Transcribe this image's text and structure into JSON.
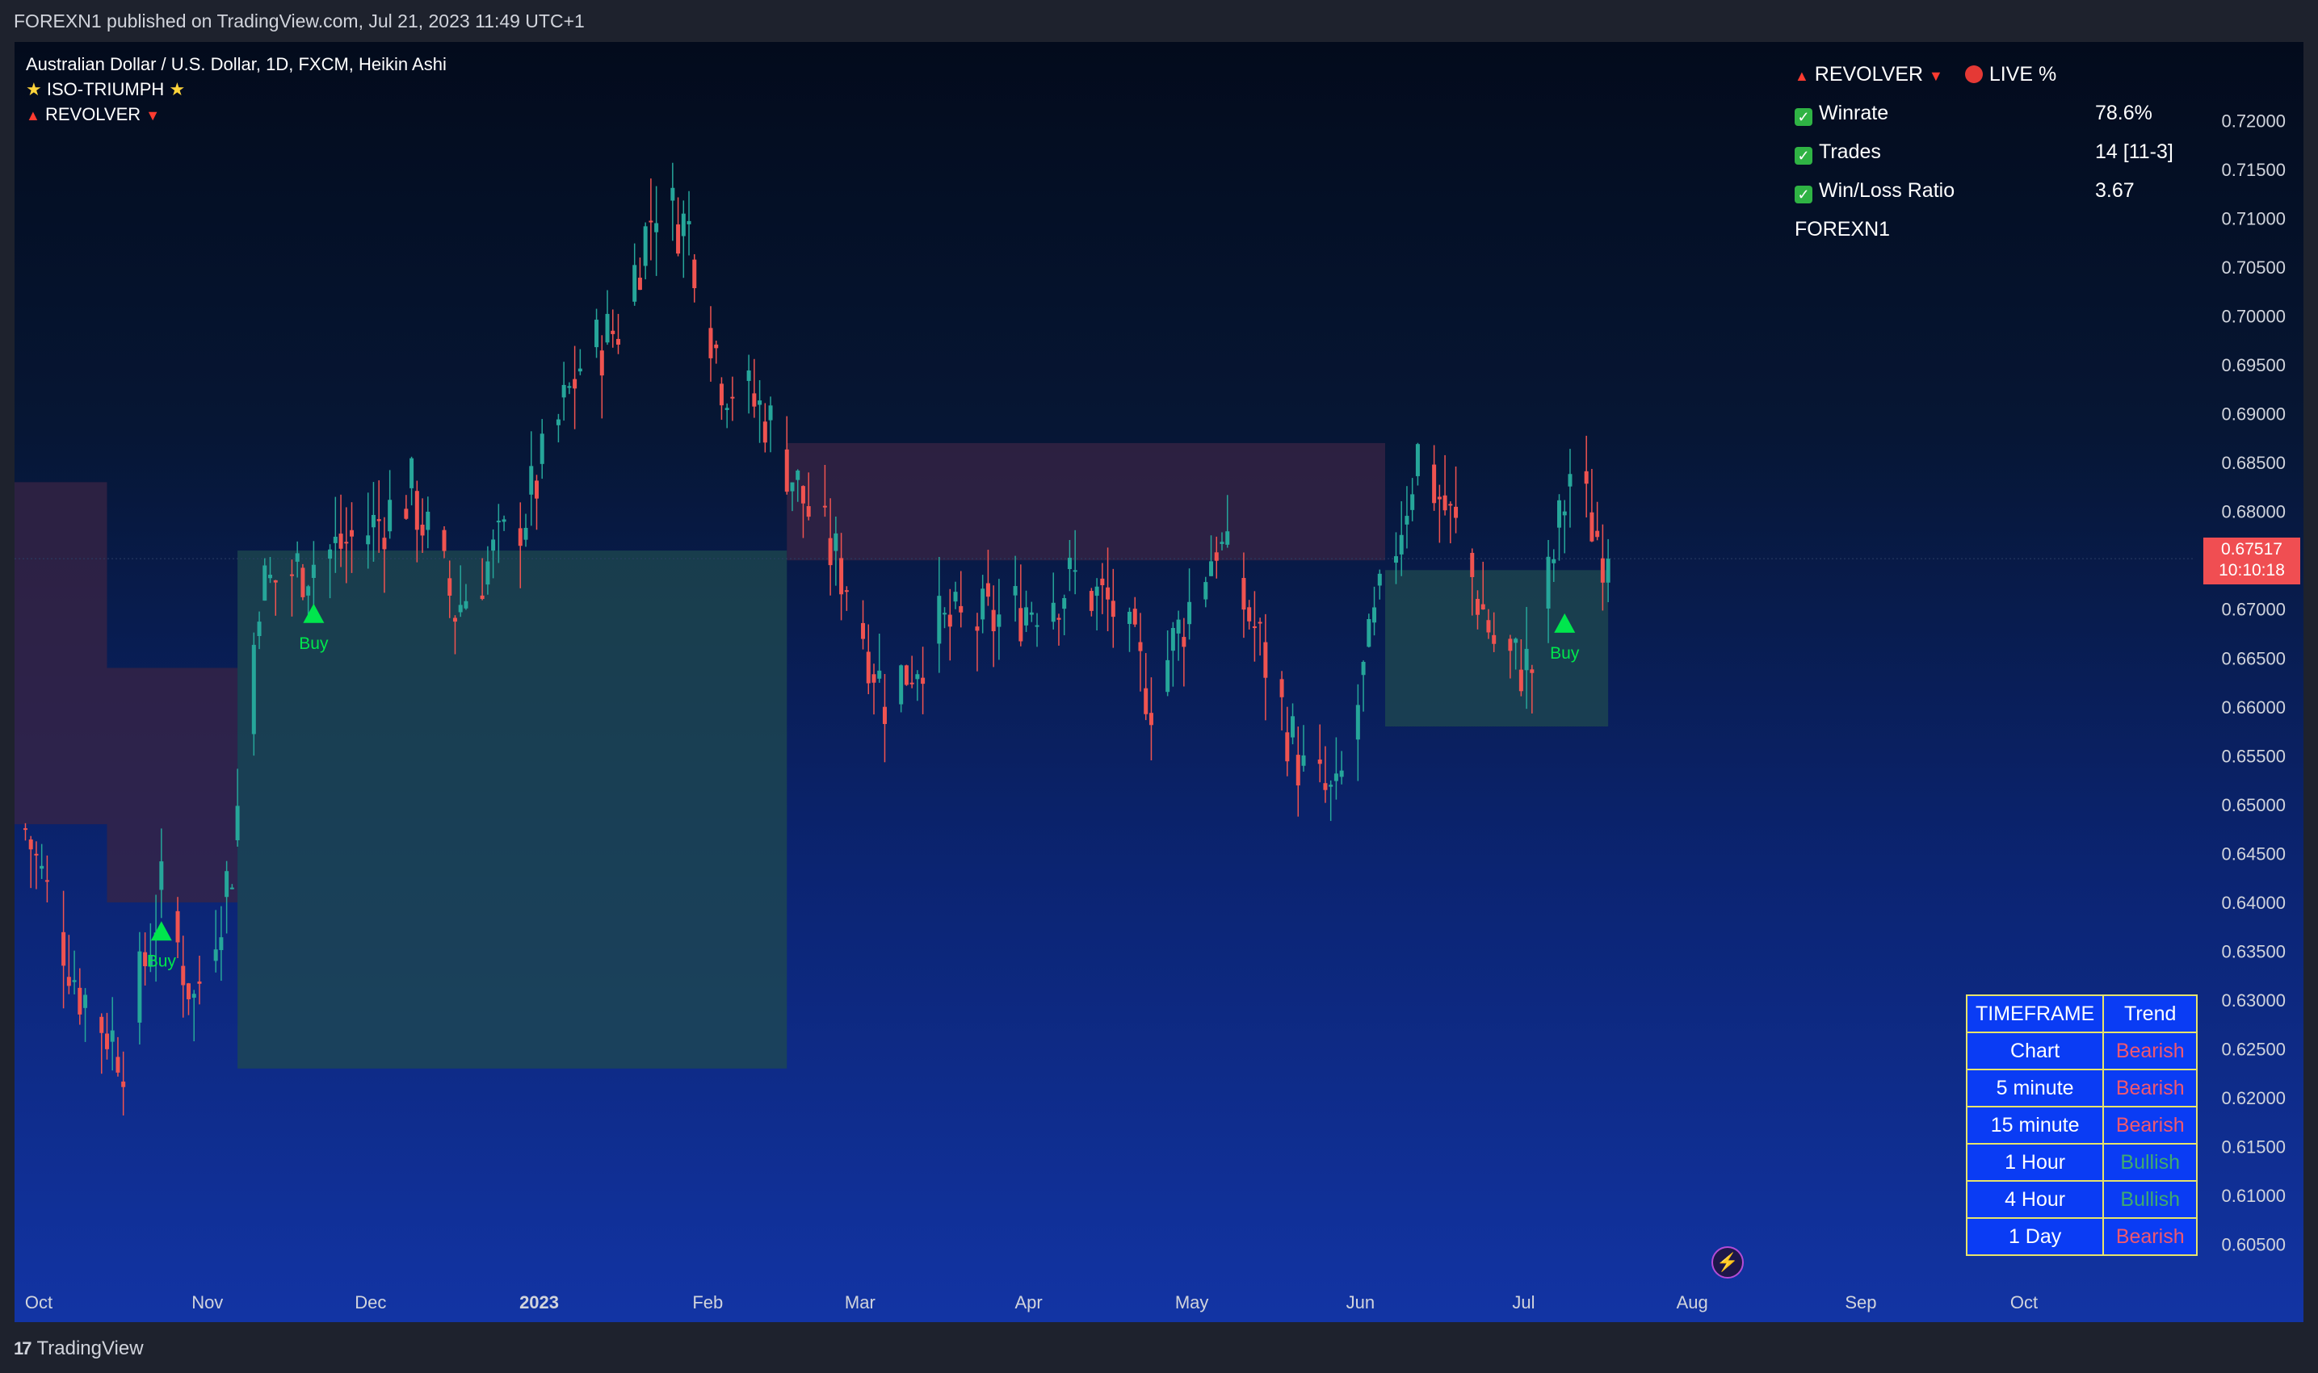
{
  "header": {
    "published_text": "FOREXN1 published on TradingView.com, Jul 21, 2023 11:49 UTC+1"
  },
  "footer": {
    "brand_mark": "17",
    "brand": "TradingView"
  },
  "legend": {
    "symbol": "Australian Dollar / U.S. Dollar, 1D, FXCM, Heikin Ashi",
    "indicator1": "ISO-TRIUMPH",
    "indicator2": "REVOLVER"
  },
  "stats_panel": {
    "title": "REVOLVER",
    "live": "LIVE %",
    "rows": [
      {
        "label": "Winrate",
        "value": "78.6%"
      },
      {
        "label": "Trades",
        "value": "14 [11-3]"
      },
      {
        "label": "Win/Loss Ratio",
        "value": "3.67"
      }
    ],
    "footer": "FOREXN1"
  },
  "trend_table": {
    "header": [
      "TIMEFRAME",
      "Trend"
    ],
    "rows": [
      {
        "timeframe": "Chart",
        "trend": "Bearish"
      },
      {
        "timeframe": "5 minute",
        "trend": "Bearish"
      },
      {
        "timeframe": "15 minute",
        "trend": "Bearish"
      },
      {
        "timeframe": "1 Hour",
        "trend": "Bullish"
      },
      {
        "timeframe": "4 Hour",
        "trend": "Bullish"
      },
      {
        "timeframe": "1 Day",
        "trend": "Bearish"
      }
    ]
  },
  "price_axis": {
    "ticks": [
      "0.72000",
      "0.71500",
      "0.71000",
      "0.70500",
      "0.70000",
      "0.69500",
      "0.69000",
      "0.68500",
      "0.68000",
      "0.67000",
      "0.66500",
      "0.66000",
      "0.65500",
      "0.65000",
      "0.64500",
      "0.64000",
      "0.63500",
      "0.63000",
      "0.62500",
      "0.62000",
      "0.61500",
      "0.61000",
      "0.60500"
    ],
    "current_price": "0.67517",
    "countdown": "10:10:18"
  },
  "time_axis": {
    "labels": [
      "Oct",
      "Nov",
      "Dec",
      "2023",
      "Feb",
      "Mar",
      "Apr",
      "May",
      "Jun",
      "Jul",
      "Aug",
      "Sep",
      "Oct"
    ]
  },
  "signals": [
    "Buy",
    "Buy",
    "Buy"
  ],
  "colors": {
    "bull": "#26a69a",
    "bear": "#ef5350",
    "buy_signal": "#00e64d",
    "cloud_bull": "#1f4a4f",
    "cloud_bear": "#3a2444",
    "table_bg": "#0a3cf4",
    "table_border": "#e7e36b"
  },
  "chart_data": {
    "type": "candlestick",
    "series_style": "Heikin Ashi",
    "interval": "1D",
    "ylim": [
      0.6025,
      0.7235
    ],
    "x_range": [
      "2022-10-01",
      "2023-10-31"
    ],
    "ohlc_keyframes": [
      {
        "date": "2022-10-03",
        "close": 0.6475
      },
      {
        "date": "2022-10-13",
        "close": 0.631
      },
      {
        "date": "2022-10-21",
        "close": 0.6245
      },
      {
        "date": "2022-10-28",
        "close": 0.641
      },
      {
        "date": "2022-11-03",
        "close": 0.63
      },
      {
        "date": "2022-11-10",
        "close": 0.644
      },
      {
        "date": "2022-11-15",
        "close": 0.672
      },
      {
        "date": "2022-11-25",
        "close": 0.675
      },
      {
        "date": "2022-12-05",
        "close": 0.678
      },
      {
        "date": "2022-12-13",
        "close": 0.682
      },
      {
        "date": "2022-12-21",
        "close": 0.67
      },
      {
        "date": "2023-01-03",
        "close": 0.68
      },
      {
        "date": "2023-01-13",
        "close": 0.695
      },
      {
        "date": "2023-01-20",
        "close": 0.699
      },
      {
        "date": "2023-01-27",
        "close": 0.712
      },
      {
        "date": "2023-02-02",
        "close": 0.709
      },
      {
        "date": "2023-02-08",
        "close": 0.694
      },
      {
        "date": "2023-02-16",
        "close": 0.69
      },
      {
        "date": "2023-02-24",
        "close": 0.68
      },
      {
        "date": "2023-03-03",
        "close": 0.673
      },
      {
        "date": "2023-03-10",
        "close": 0.661
      },
      {
        "date": "2023-03-20",
        "close": 0.668
      },
      {
        "date": "2023-03-31",
        "close": 0.669
      },
      {
        "date": "2023-04-14",
        "close": 0.673
      },
      {
        "date": "2023-04-21",
        "close": 0.67
      },
      {
        "date": "2023-04-28",
        "close": 0.661
      },
      {
        "date": "2023-05-10",
        "close": 0.677
      },
      {
        "date": "2023-05-17",
        "close": 0.668
      },
      {
        "date": "2023-05-26",
        "close": 0.653
      },
      {
        "date": "2023-06-01",
        "close": 0.65
      },
      {
        "date": "2023-06-08",
        "close": 0.668
      },
      {
        "date": "2023-06-16",
        "close": 0.686
      },
      {
        "date": "2023-06-23",
        "close": 0.678
      },
      {
        "date": "2023-07-01",
        "close": 0.665
      },
      {
        "date": "2023-07-07",
        "close": 0.664
      },
      {
        "date": "2023-07-14",
        "close": 0.684
      },
      {
        "date": "2023-07-21",
        "close": 0.67517
      }
    ],
    "cloud_bands": [
      {
        "from": "2022-10-01",
        "to": "2022-10-18",
        "side": "bear",
        "upper": 0.683,
        "lower": 0.648
      },
      {
        "from": "2022-10-18",
        "to": "2022-11-11",
        "side": "bear",
        "upper": 0.664,
        "lower": 0.64
      },
      {
        "from": "2022-11-11",
        "to": "2023-02-20",
        "side": "bull",
        "upper": 0.676,
        "lower": 0.623
      },
      {
        "from": "2023-02-20",
        "to": "2023-06-10",
        "side": "bear",
        "upper": 0.687,
        "lower": 0.675
      },
      {
        "from": "2023-06-10",
        "to": "2023-07-21",
        "side": "bull",
        "upper": 0.674,
        "lower": 0.658
      }
    ],
    "buy_signals": [
      {
        "date": "2022-10-28",
        "price": 0.637
      },
      {
        "date": "2022-11-25",
        "price": 0.6695
      },
      {
        "date": "2023-07-13",
        "price": 0.6685
      }
    ]
  }
}
